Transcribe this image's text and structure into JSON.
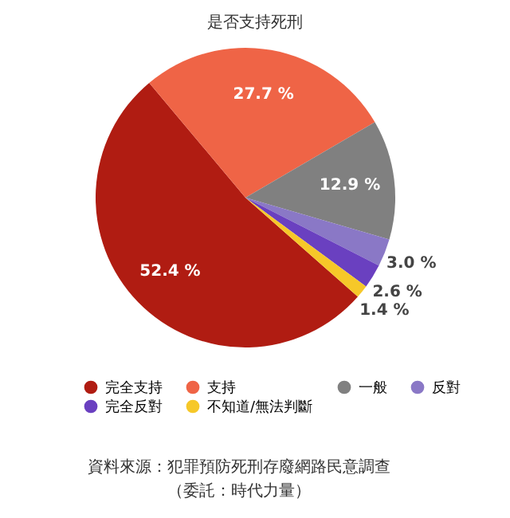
{
  "chart_data": {
    "type": "pie",
    "title": "是否支持死刑",
    "categories": [
      "完全支持",
      "支持",
      "一般",
      "反對",
      "完全反對",
      "不知道/無法判斷"
    ],
    "values": [
      52.4,
      27.7,
      12.9,
      3.0,
      2.6,
      1.4
    ],
    "colors": [
      "#b01c12",
      "#ef6446",
      "#808080",
      "#8a78c6",
      "#6a40c0",
      "#f6c829"
    ],
    "value_labels": [
      "52.4 %",
      "27.7 %",
      "12.9 %",
      "3.0 %",
      "2.6 %",
      "1.4 %"
    ],
    "legend": "bottom",
    "annotations": [
      "資料來源：犯罪預防死刑存廢網路民意調查",
      "（委託：時代力量）"
    ]
  }
}
